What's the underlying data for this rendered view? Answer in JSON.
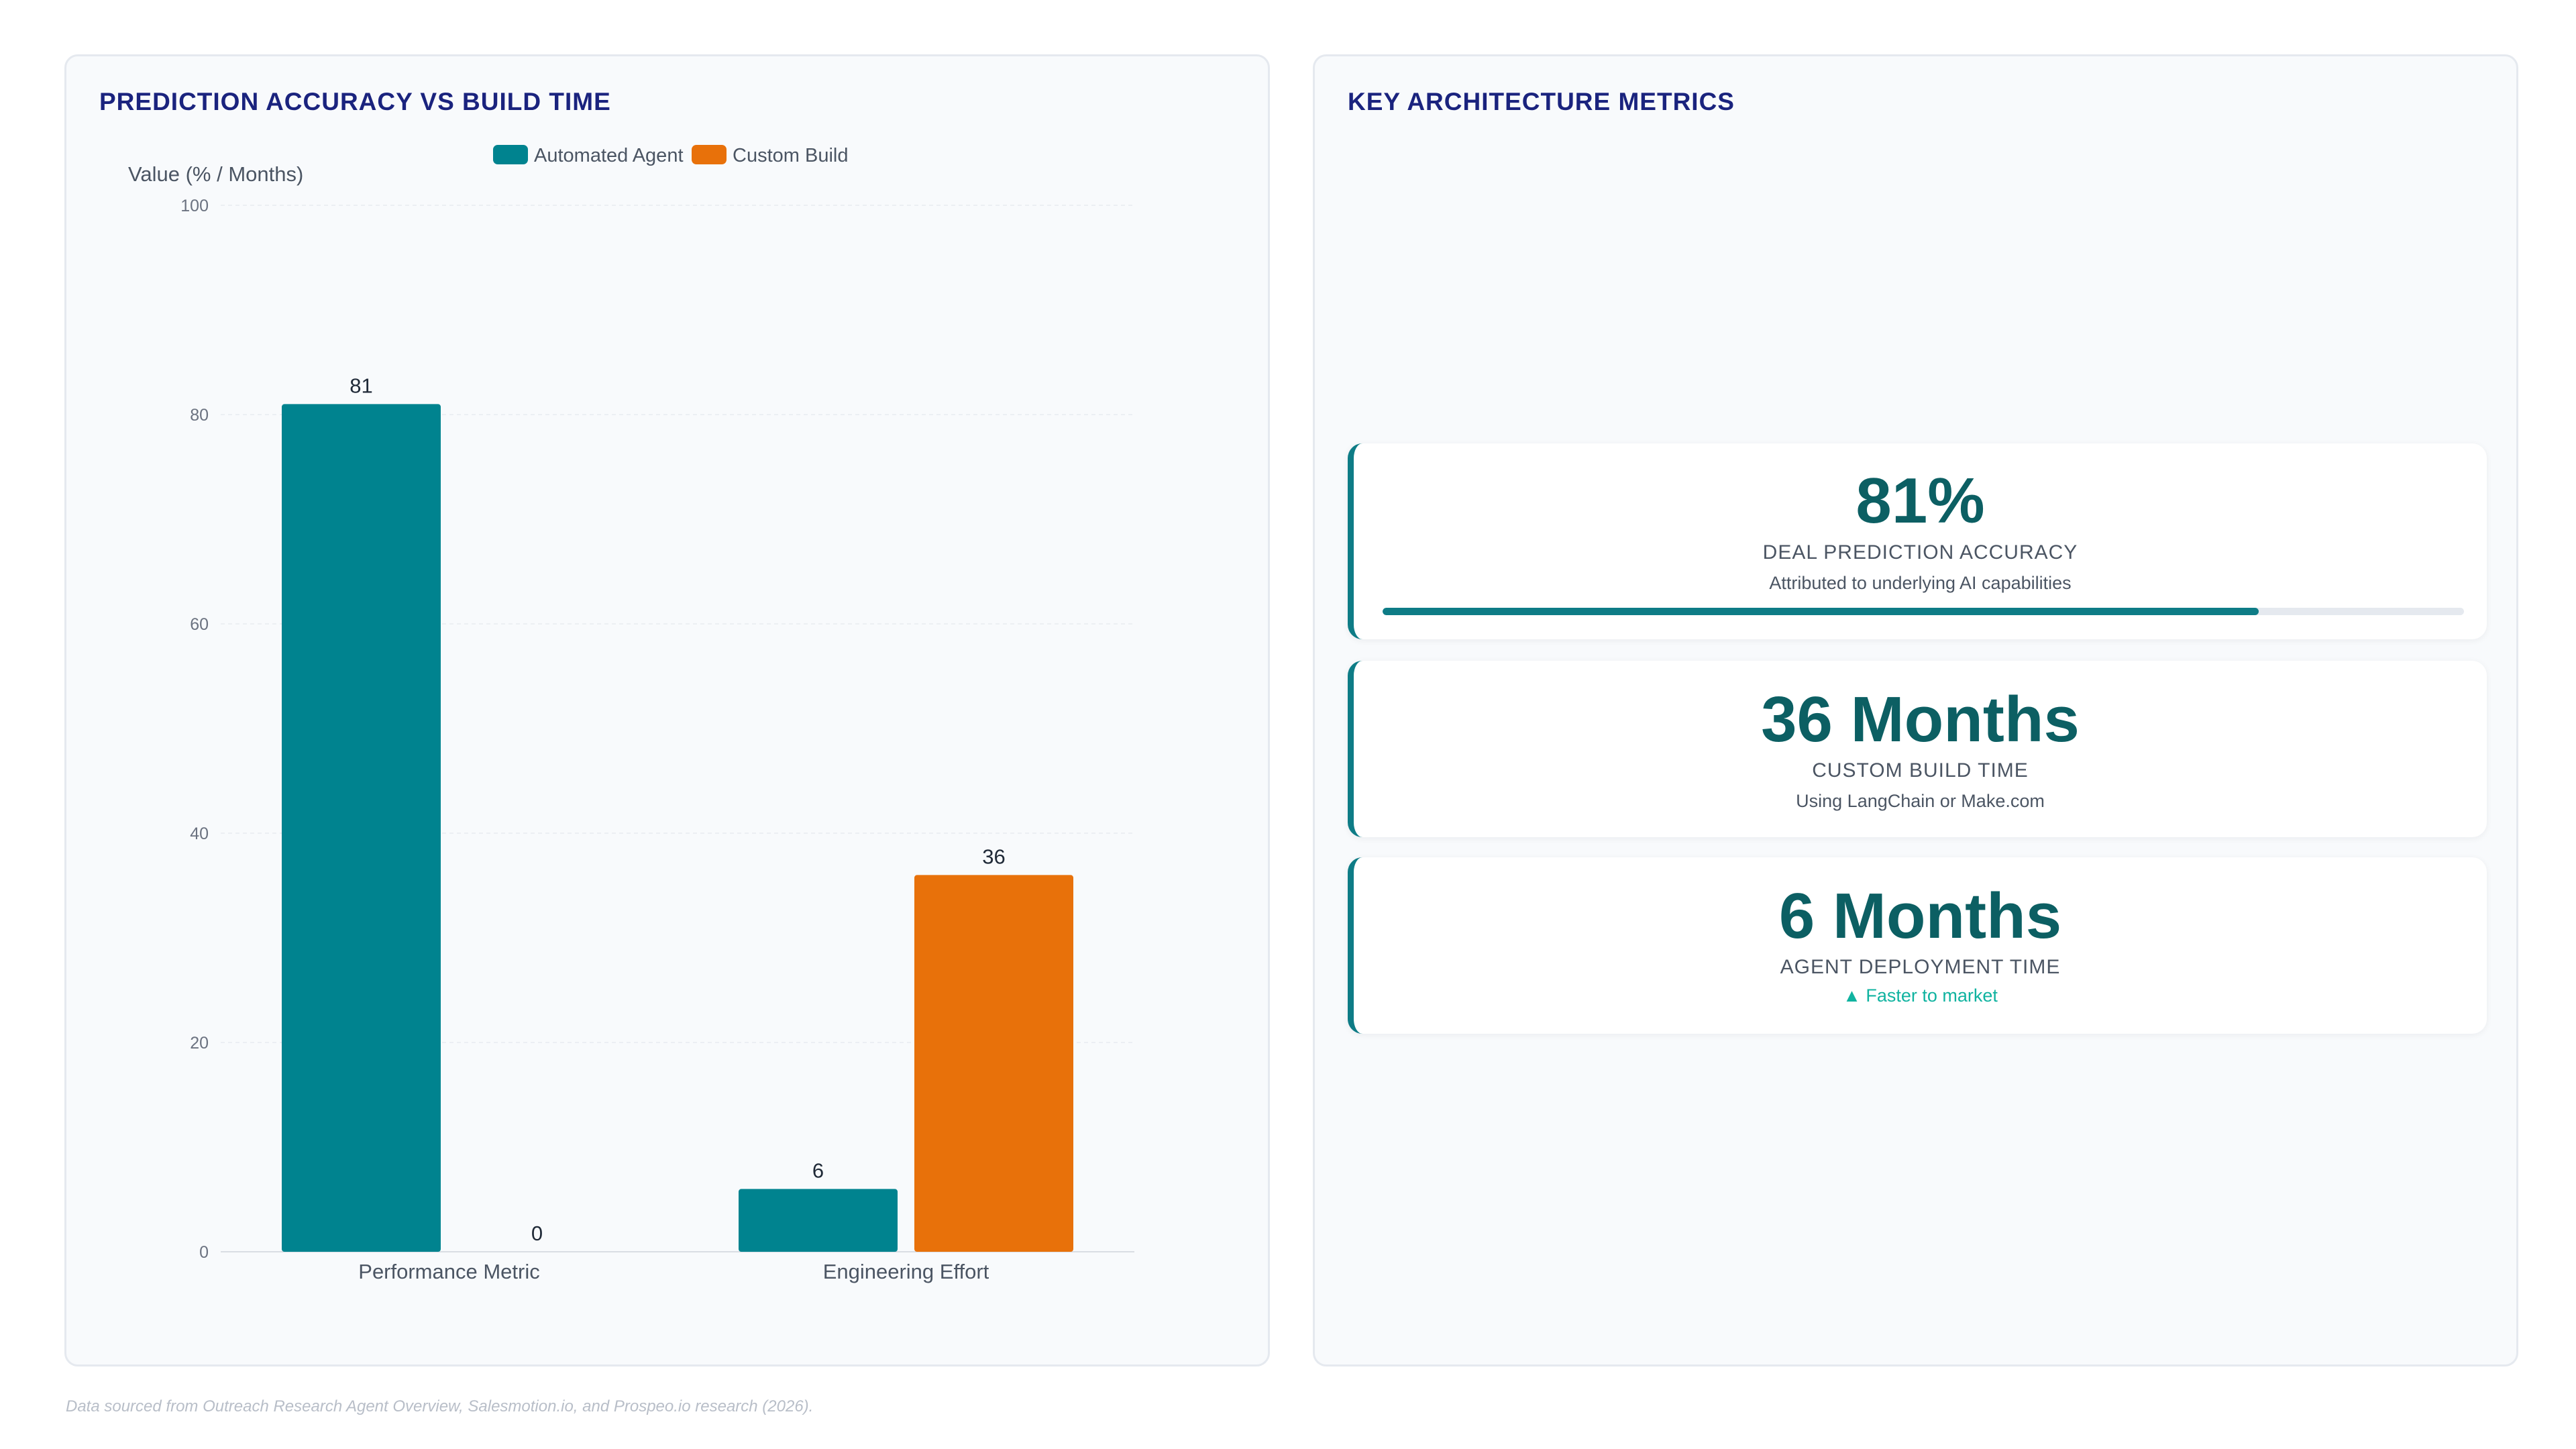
{
  "chart_panel": {
    "title": "PREDICTION ACCURACY VS BUILD TIME"
  },
  "chart_data": {
    "type": "bar",
    "categories": [
      "Performance Metric",
      "Engineering Effort"
    ],
    "series": [
      {
        "name": "Automated Agent",
        "values": [
          81,
          6
        ],
        "color": "#00838f"
      },
      {
        "name": "Custom Build",
        "values": [
          0,
          36
        ],
        "color": "#e8710a"
      }
    ],
    "ylabel": "Value (% / Months)",
    "xlabel": "",
    "ylim": [
      0,
      100
    ],
    "yticks": [
      0,
      20,
      40,
      60,
      80,
      100
    ],
    "grid": true,
    "legend": "top-center"
  },
  "metrics_panel": {
    "title": "KEY ARCHITECTURE METRICS",
    "cards": [
      {
        "value": "81%",
        "label": "DEAL PREDICTION ACCURACY",
        "sub": "Attributed to underlying AI capabilities",
        "progress": 0.81
      },
      {
        "value": "36 Months",
        "label": "CUSTOM BUILD TIME",
        "sub": "Using LangChain or Make.com"
      },
      {
        "value": "6 Months",
        "label": "AGENT DEPLOYMENT TIME",
        "sub": "▲ Faster to market"
      }
    ]
  },
  "footnote": "Data sourced from Outreach Research Agent Overview, Salesmotion.io, and Prospeo.io research (2026).",
  "colors": {
    "accent": "#0e7c86",
    "title": "#1a237e",
    "positive": "#10b3a0"
  }
}
